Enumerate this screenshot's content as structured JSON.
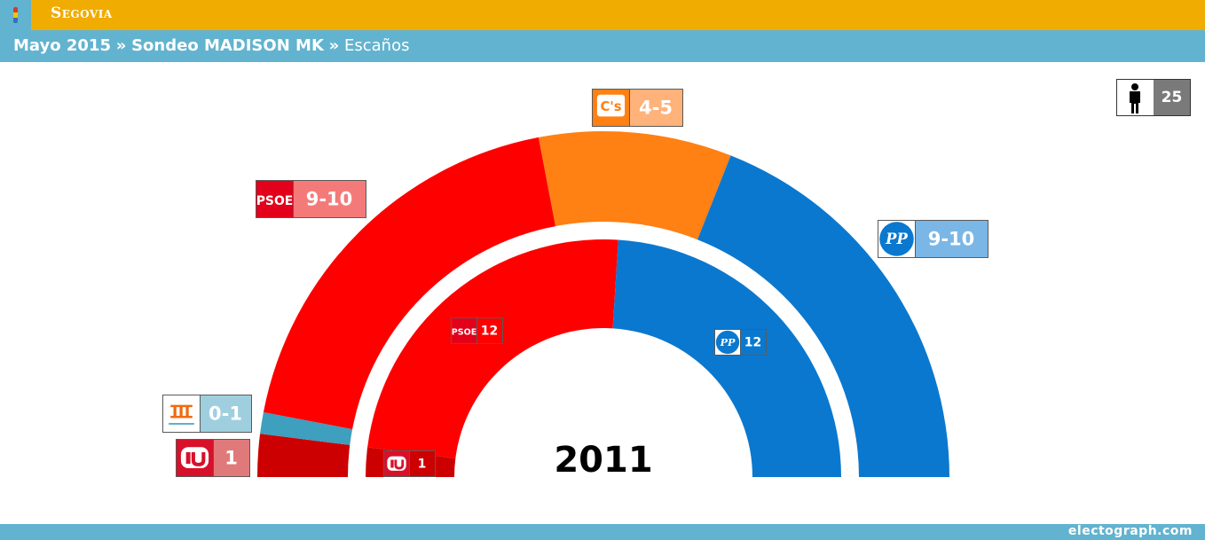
{
  "header": {
    "region": "Segovia",
    "crumbs": [
      "Mayo 2015",
      "Sondeo MADISON MK"
    ],
    "separator": "»",
    "current": "Escaños"
  },
  "total_seats": "25",
  "footer": {
    "brand": "electograph.com"
  },
  "chart_data": {
    "type": "pie",
    "subtype": "semicircle-parliament",
    "total_seats": 25,
    "outer_ring": {
      "label": "Sondeo MADISON MK",
      "seats": [
        {
          "party": "IU",
          "range": "1",
          "seats": 1,
          "color": "#cc0000",
          "badge_color": "#e07a7a"
        },
        {
          "party": "Segovianos",
          "range": "0-1",
          "seats": 0.5,
          "color": "#3e9fbe",
          "badge_color": "#9fcfdf"
        },
        {
          "party": "PSOE",
          "range": "9-10",
          "seats": 9.5,
          "color": "#ff0000",
          "badge_color": "#f47a7a"
        },
        {
          "party": "C's",
          "range": "4-5",
          "seats": 4.5,
          "color": "#ff8013",
          "badge_color": "#ffb27a"
        },
        {
          "party": "PP",
          "range": "9-10",
          "seats": 9.5,
          "color": "#0a78cf",
          "badge_color": "#7ab7e6"
        }
      ]
    },
    "inner_ring": {
      "label": "2011",
      "seats": [
        {
          "party": "IU",
          "range": "1",
          "seats": 1,
          "color": "#cc0000"
        },
        {
          "party": "PSOE",
          "range": "12",
          "seats": 12,
          "color": "#ff0000"
        },
        {
          "party": "PP",
          "range": "12",
          "seats": 12,
          "color": "#0a78cf"
        }
      ]
    }
  }
}
